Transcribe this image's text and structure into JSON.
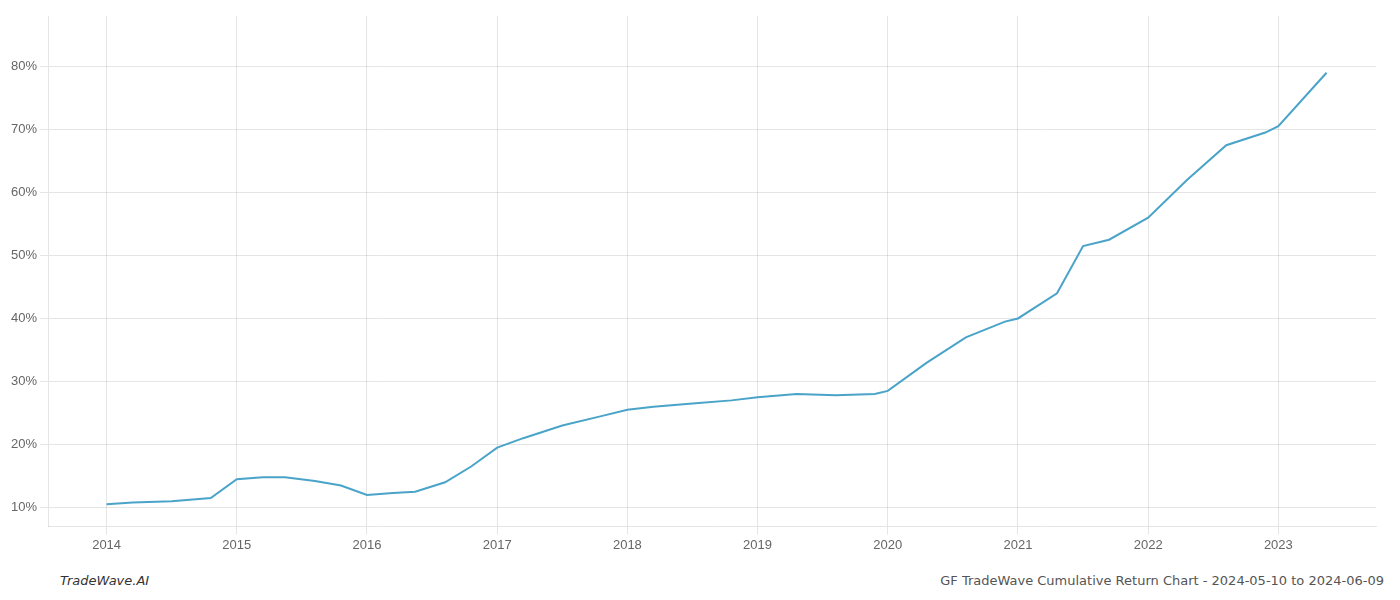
{
  "chart_data": {
    "type": "line",
    "annotations": [
      "TradeWave.AI",
      "GF TradeWave Cumulative Return Chart - 2024-05-10 to 2024-06-09"
    ],
    "x": [
      2014.0,
      2014.2,
      2014.5,
      2014.8,
      2015.0,
      2015.2,
      2015.37,
      2015.6,
      2015.8,
      2016.0,
      2016.2,
      2016.37,
      2016.6,
      2016.8,
      2017.0,
      2017.2,
      2017.5,
      2017.8,
      2018.0,
      2018.2,
      2018.5,
      2018.8,
      2019.0,
      2019.3,
      2019.6,
      2019.9,
      2020.0,
      2020.3,
      2020.6,
      2020.9,
      2021.0,
      2021.3,
      2021.5,
      2021.7,
      2022.0,
      2022.3,
      2022.6,
      2022.9,
      2023.0,
      2023.37
    ],
    "values": [
      10.5,
      10.8,
      11.0,
      11.5,
      14.5,
      14.8,
      14.8,
      14.2,
      13.5,
      12.0,
      12.3,
      12.5,
      14.0,
      16.5,
      19.5,
      21.0,
      23.0,
      24.5,
      25.5,
      26.0,
      26.5,
      27.0,
      27.5,
      28.0,
      27.8,
      28.0,
      28.5,
      33.0,
      37.0,
      39.5,
      40.0,
      44.0,
      51.5,
      52.5,
      56.0,
      62.0,
      67.5,
      69.5,
      70.5,
      79.0
    ],
    "color": "#4aa3c8",
    "xlim": [
      2013.55,
      2023.75
    ],
    "xticks": [
      2014,
      2015,
      2016,
      2017,
      2018,
      2019,
      2020,
      2021,
      2022,
      2023
    ],
    "ylim": [
      7,
      88
    ],
    "yticks": [
      {
        "value": 10,
        "label": "10%"
      },
      {
        "value": 20,
        "label": "20%"
      },
      {
        "value": 30,
        "label": "30%"
      },
      {
        "value": 40,
        "label": "40%"
      },
      {
        "value": 50,
        "label": "50%"
      },
      {
        "value": 60,
        "label": "60%"
      },
      {
        "value": 70,
        "label": "70%"
      },
      {
        "value": 80,
        "label": "80%"
      }
    ],
    "grid": true
  }
}
